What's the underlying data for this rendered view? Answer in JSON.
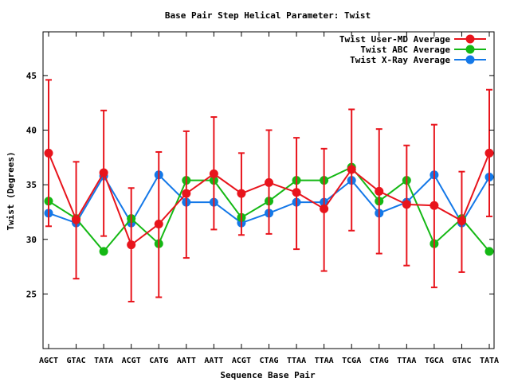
{
  "chart_data": {
    "type": "line",
    "title": "Base Pair Step Helical Parameter: Twist",
    "xlabel": "Sequence Base Pair",
    "ylabel": "Twist (Degrees)",
    "ylim": [
      20,
      49
    ],
    "yticks": [
      25,
      30,
      35,
      40,
      45
    ],
    "grid": false,
    "legend_position": "top-right",
    "categories": [
      "AGCT",
      "GTAC",
      "TATA",
      "ACGT",
      "CATG",
      "AATT",
      "AATT",
      "ACGT",
      "CTAG",
      "TTAA",
      "TTAA",
      "TCGA",
      "CTAG",
      "TTAA",
      "TGCA",
      "GTAC",
      "TATA"
    ],
    "series": [
      {
        "name": "Twist User-MD Average",
        "color": "#e8141c",
        "values": [
          37.9,
          31.8,
          36.1,
          29.5,
          31.4,
          34.2,
          36.0,
          34.2,
          35.2,
          34.3,
          32.8,
          36.4,
          34.4,
          33.2,
          33.1,
          31.7,
          37.9
        ],
        "error_low": [
          31.2,
          26.4,
          30.3,
          24.3,
          24.7,
          28.3,
          30.9,
          30.4,
          30.5,
          29.1,
          27.1,
          30.8,
          28.7,
          27.6,
          25.6,
          27.0,
          32.1
        ],
        "error_high": [
          44.6,
          37.1,
          41.8,
          34.7,
          38.0,
          39.9,
          41.2,
          37.9,
          40.0,
          39.3,
          38.3,
          41.9,
          40.1,
          38.6,
          40.5,
          36.2,
          43.7
        ]
      },
      {
        "name": "Twist ABC Average",
        "color": "#14b814",
        "values": [
          33.5,
          31.9,
          28.9,
          31.9,
          29.6,
          35.4,
          35.4,
          32.0,
          33.5,
          35.4,
          35.4,
          36.6,
          33.5,
          35.4,
          29.6,
          31.9,
          28.9
        ]
      },
      {
        "name": "Twist X-Ray Average",
        "color": "#1478e8",
        "values": [
          32.4,
          31.5,
          35.8,
          31.5,
          35.9,
          33.4,
          33.4,
          31.5,
          32.4,
          33.4,
          33.4,
          35.4,
          32.4,
          33.4,
          35.9,
          31.5,
          35.7
        ]
      }
    ]
  }
}
